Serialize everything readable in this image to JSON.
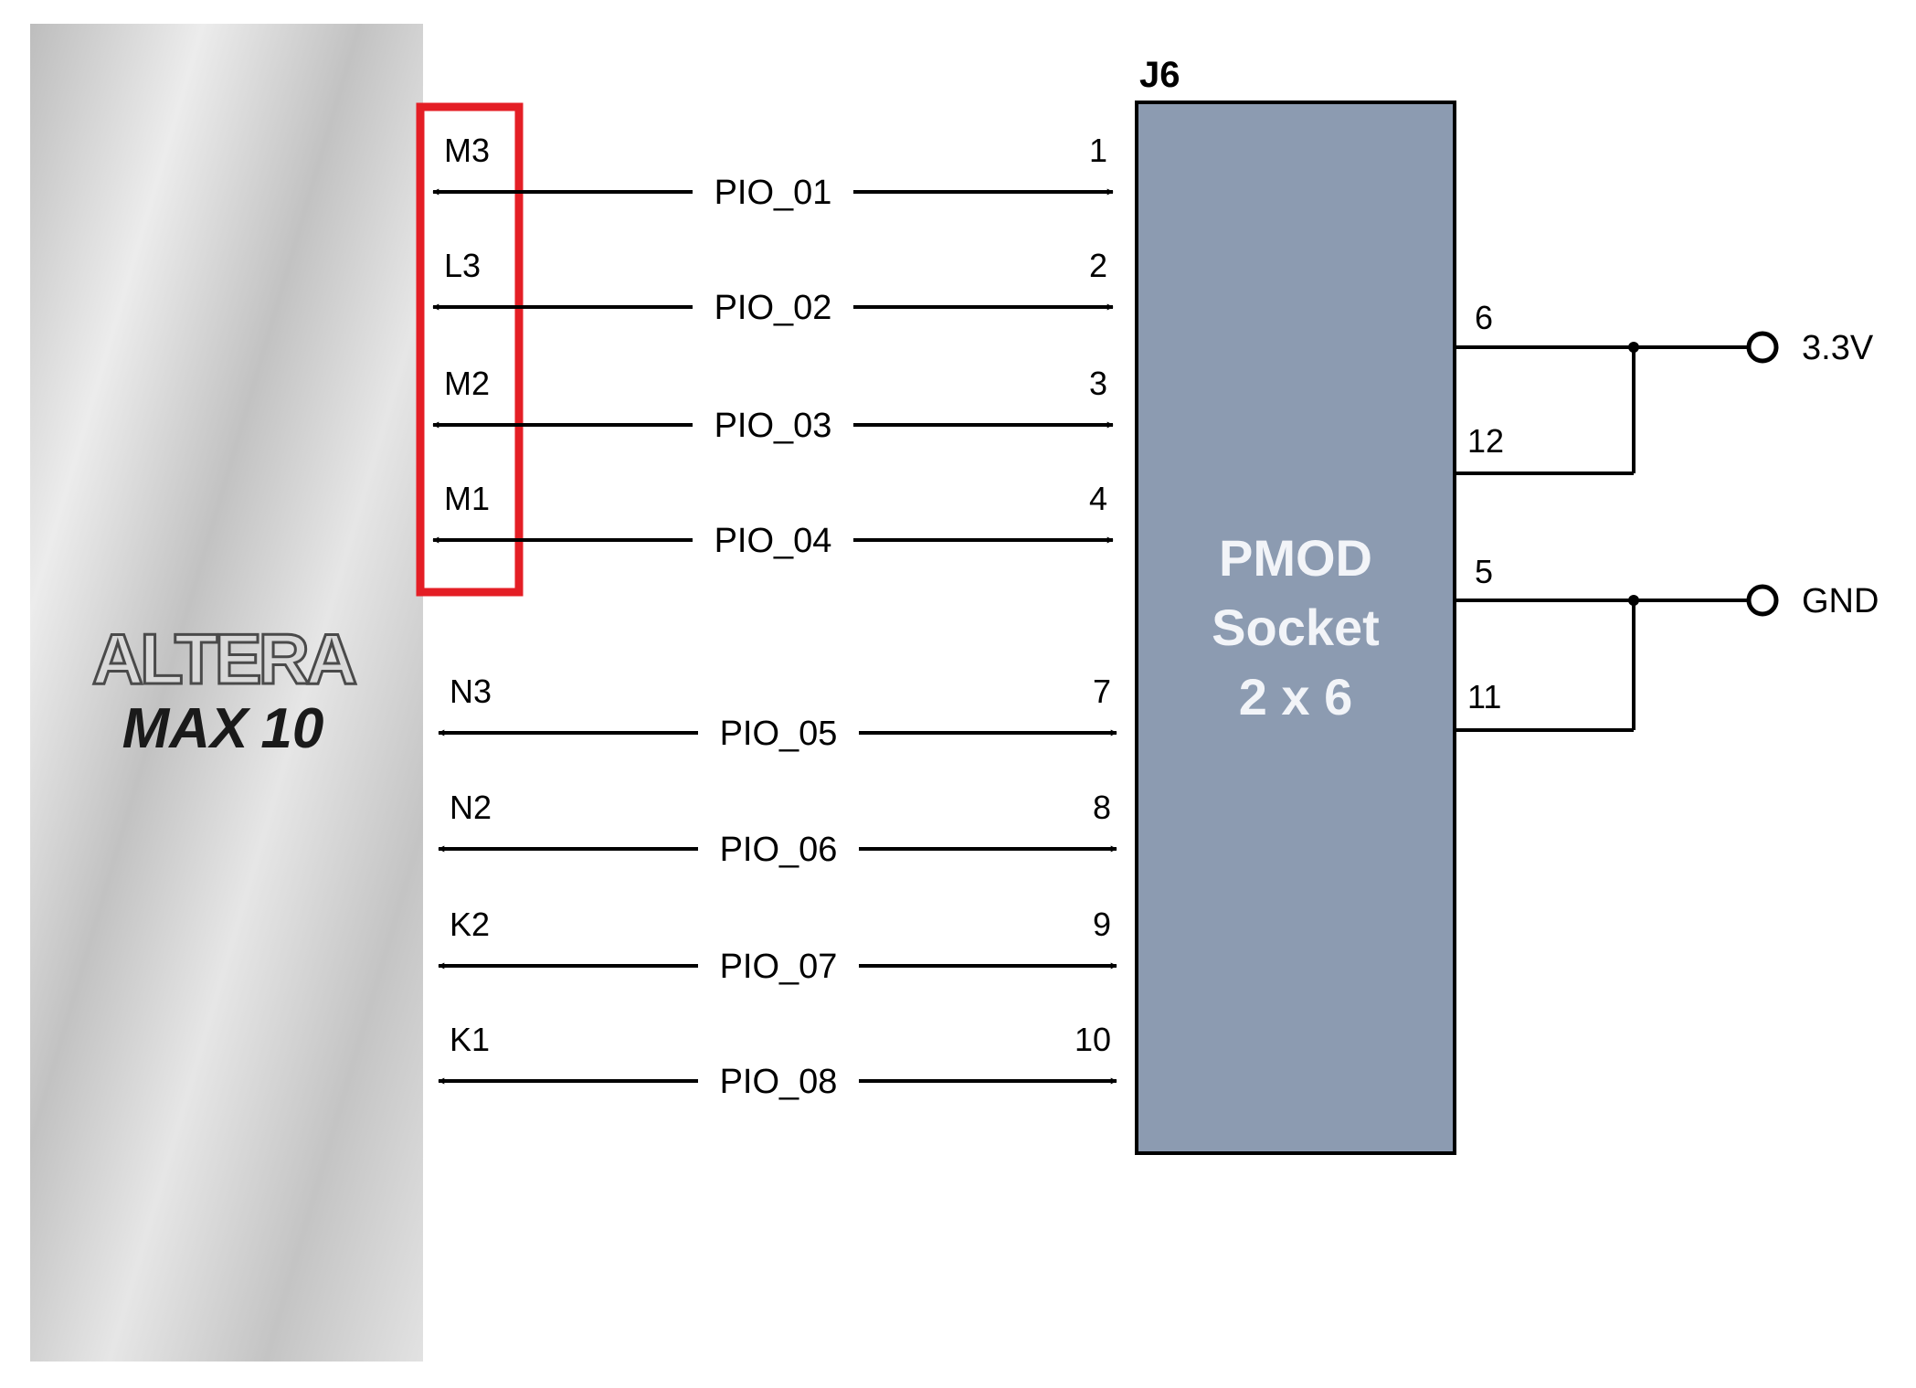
{
  "fpga": {
    "brand": "ALTERA",
    "family": "MAX",
    "family_number": "10",
    "fill_dark": "#bdbdbd",
    "fill_light": "#ededed"
  },
  "connector": {
    "designator": "J6",
    "name_lines": [
      "PMOD",
      "Socket",
      "2 x 6"
    ],
    "fill": "#8c9bb1",
    "text_color": "#f2f4f8"
  },
  "highlight": {
    "color": "#e41e25",
    "covers_rows": 4
  },
  "signals": [
    {
      "fpga_pin": "M3",
      "net": "PIO_01",
      "socket_pin": "1"
    },
    {
      "fpga_pin": "L3",
      "net": "PIO_02",
      "socket_pin": "2"
    },
    {
      "fpga_pin": "M2",
      "net": "PIO_03",
      "socket_pin": "3"
    },
    {
      "fpga_pin": "M1",
      "net": "PIO_04",
      "socket_pin": "4"
    },
    {
      "fpga_pin": "N3",
      "net": "PIO_05",
      "socket_pin": "7"
    },
    {
      "fpga_pin": "N2",
      "net": "PIO_06",
      "socket_pin": "8"
    },
    {
      "fpga_pin": "K2",
      "net": "PIO_07",
      "socket_pin": "9"
    },
    {
      "fpga_pin": "K1",
      "net": "PIO_08",
      "socket_pin": "10"
    }
  ],
  "power": [
    {
      "label": "3.3V",
      "pins": [
        "6",
        "12"
      ]
    },
    {
      "label": "GND",
      "pins": [
        "5",
        "11"
      ]
    }
  ]
}
